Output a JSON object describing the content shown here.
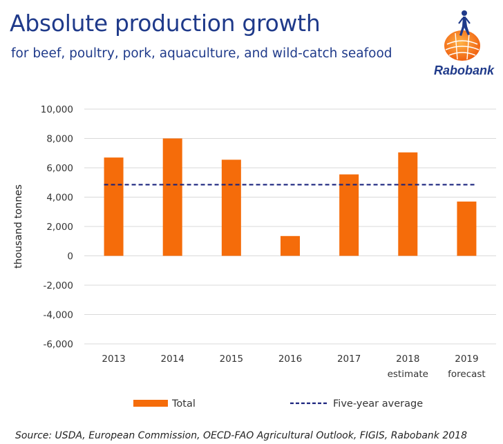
{
  "header": {
    "title": "Absolute production growth",
    "subtitle": "for beef, poultry, pork, aquaculture, and wild-catch seafood",
    "logo_text": "Rabobank",
    "logo_icon": "rabobank-logo-icon"
  },
  "colors": {
    "bar": "#f56c0a",
    "average": "#1a237e",
    "title": "#1f3a8a",
    "grid": "#d9d9d9"
  },
  "chart_data": {
    "type": "bar",
    "categories": [
      "2013",
      "2014",
      "2015",
      "2016",
      "2017",
      "2018\nestimate",
      "2019\nforecast"
    ],
    "series": [
      {
        "name": "Total",
        "values": [
          6700,
          8000,
          6550,
          1350,
          5550,
          7050,
          3700
        ]
      }
    ],
    "reference_line": {
      "name": "Five-year average",
      "value": 4850
    },
    "ylabel": "thousand tonnes",
    "ylim": [
      -6000,
      10000
    ],
    "yticks": [
      "10,000",
      "8,000",
      "6,000",
      "4,000",
      "2,000",
      "0",
      "-2,000",
      "-4,000",
      "-6,000"
    ],
    "grid": true,
    "legend": [
      "Total",
      "Five-year average"
    ],
    "legend_position": "bottom"
  },
  "footer": {
    "source": "Source: USDA, European Commission, OECD-FAO Agricultural Outlook, FIGIS, Rabobank 2018"
  }
}
